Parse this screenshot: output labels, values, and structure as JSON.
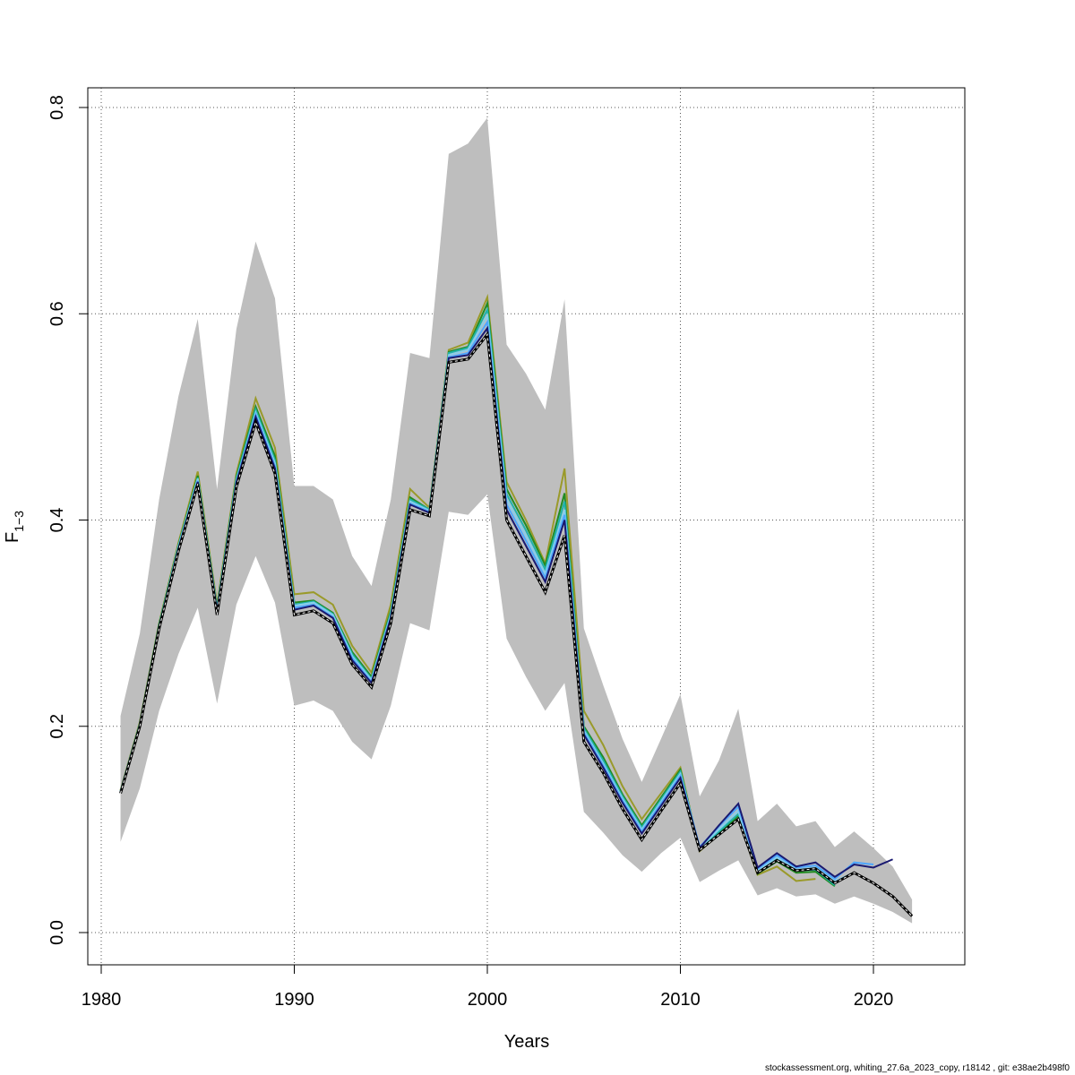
{
  "chart_data": {
    "type": "line",
    "xlabel": "Years",
    "ylabel_main": "F",
    "ylabel_sub": "1−3",
    "xlim": [
      1980,
      2024
    ],
    "ylim": [
      0,
      0.8
    ],
    "x_ticks": [
      1980,
      1990,
      2000,
      2010,
      2020
    ],
    "y_ticks": [
      0.0,
      0.2,
      0.4,
      0.6,
      0.8
    ],
    "y_tick_labels": [
      "0.0",
      "0.2",
      "0.4",
      "0.6",
      "0.8"
    ],
    "grid": true,
    "colors": {
      "band": "#bebebe",
      "main": "#000000",
      "series": [
        "#191970",
        "#4da6ff",
        "#87ceeb",
        "#20b2aa",
        "#228b22",
        "#9a9a2a"
      ]
    },
    "years": [
      1981,
      1982,
      1983,
      1984,
      1985,
      1986,
      1987,
      1988,
      1989,
      1990,
      1991,
      1992,
      1993,
      1994,
      1995,
      1996,
      1997,
      1998,
      1999,
      2000,
      2001,
      2002,
      2003,
      2004,
      2005,
      2006,
      2007,
      2008,
      2009,
      2010,
      2011,
      2012,
      2013,
      2014,
      2015,
      2016,
      2017,
      2018,
      2019,
      2020,
      2021,
      2022
    ],
    "estimate": [
      0.135,
      0.2,
      0.295,
      0.37,
      0.435,
      0.308,
      0.432,
      0.495,
      0.445,
      0.308,
      0.312,
      0.3,
      0.26,
      0.238,
      0.3,
      0.41,
      0.404,
      0.553,
      0.556,
      0.58,
      0.4,
      0.365,
      0.33,
      0.385,
      0.185,
      0.155,
      0.12,
      0.09,
      0.118,
      0.145,
      0.08,
      0.095,
      0.11,
      0.058,
      0.07,
      0.06,
      0.062,
      0.048,
      0.058,
      0.048,
      0.035,
      0.016
    ],
    "lower": [
      0.088,
      0.14,
      0.215,
      0.27,
      0.315,
      0.222,
      0.318,
      0.365,
      0.32,
      0.22,
      0.225,
      0.215,
      0.185,
      0.168,
      0.22,
      0.3,
      0.293,
      0.408,
      0.405,
      0.425,
      0.285,
      0.248,
      0.215,
      0.242,
      0.117,
      0.097,
      0.075,
      0.059,
      0.077,
      0.092,
      0.049,
      0.06,
      0.07,
      0.036,
      0.043,
      0.035,
      0.037,
      0.028,
      0.035,
      0.028,
      0.02,
      0.009
    ],
    "upper": [
      0.21,
      0.29,
      0.42,
      0.52,
      0.595,
      0.43,
      0.585,
      0.67,
      0.615,
      0.433,
      0.433,
      0.42,
      0.365,
      0.336,
      0.42,
      0.562,
      0.557,
      0.755,
      0.765,
      0.79,
      0.57,
      0.542,
      0.507,
      0.614,
      0.295,
      0.24,
      0.188,
      0.146,
      0.188,
      0.231,
      0.132,
      0.167,
      0.217,
      0.108,
      0.125,
      0.103,
      0.108,
      0.083,
      0.098,
      0.082,
      0.064,
      0.032
    ],
    "series": [
      {
        "years_end": 2021,
        "values": [
          0.136,
          0.201,
          0.296,
          0.372,
          0.437,
          0.311,
          0.436,
          0.5,
          0.45,
          0.313,
          0.317,
          0.305,
          0.264,
          0.242,
          0.305,
          0.415,
          0.407,
          0.557,
          0.56,
          0.586,
          0.41,
          0.375,
          0.34,
          0.4,
          0.192,
          0.16,
          0.126,
          0.096,
          0.123,
          0.15,
          0.082,
          0.104,
          0.125,
          0.063,
          0.077,
          0.064,
          0.068,
          0.054,
          0.066,
          0.063,
          0.071
        ]
      },
      {
        "years_end": 2020,
        "values": [
          0.136,
          0.201,
          0.296,
          0.373,
          0.438,
          0.312,
          0.437,
          0.502,
          0.452,
          0.315,
          0.318,
          0.306,
          0.266,
          0.243,
          0.306,
          0.416,
          0.408,
          0.558,
          0.562,
          0.592,
          0.415,
          0.38,
          0.344,
          0.405,
          0.194,
          0.162,
          0.128,
          0.098,
          0.125,
          0.152,
          0.083,
          0.103,
          0.122,
          0.062,
          0.075,
          0.063,
          0.065,
          0.052,
          0.068,
          0.066
        ]
      },
      {
        "years_end": 2019,
        "values": [
          0.137,
          0.202,
          0.297,
          0.374,
          0.44,
          0.313,
          0.438,
          0.504,
          0.455,
          0.317,
          0.32,
          0.308,
          0.268,
          0.245,
          0.308,
          0.418,
          0.409,
          0.56,
          0.565,
          0.598,
          0.42,
          0.385,
          0.348,
          0.41,
          0.196,
          0.164,
          0.13,
          0.1,
          0.127,
          0.154,
          0.082,
          0.1,
          0.118,
          0.06,
          0.073,
          0.061,
          0.063,
          0.05,
          0.058
        ]
      },
      {
        "years_end": 2018,
        "values": [
          0.137,
          0.202,
          0.298,
          0.375,
          0.441,
          0.314,
          0.44,
          0.507,
          0.458,
          0.318,
          0.321,
          0.309,
          0.27,
          0.246,
          0.31,
          0.42,
          0.41,
          0.562,
          0.567,
          0.604,
          0.425,
          0.39,
          0.352,
          0.418,
          0.198,
          0.167,
          0.132,
          0.102,
          0.129,
          0.156,
          0.081,
          0.098,
          0.115,
          0.059,
          0.071,
          0.06,
          0.061,
          0.046
        ]
      },
      {
        "years_end": 2018,
        "values": [
          0.137,
          0.203,
          0.299,
          0.376,
          0.443,
          0.315,
          0.442,
          0.51,
          0.462,
          0.32,
          0.322,
          0.31,
          0.272,
          0.248,
          0.312,
          0.422,
          0.41,
          0.563,
          0.568,
          0.61,
          0.43,
          0.395,
          0.356,
          0.426,
          0.2,
          0.17,
          0.134,
          0.104,
          0.131,
          0.158,
          0.08,
          0.097,
          0.113,
          0.057,
          0.069,
          0.058,
          0.059,
          0.045
        ]
      },
      {
        "years_end": 2017,
        "values": [
          0.138,
          0.204,
          0.3,
          0.378,
          0.447,
          0.318,
          0.445,
          0.518,
          0.47,
          0.328,
          0.33,
          0.318,
          0.278,
          0.252,
          0.318,
          0.43,
          0.412,
          0.565,
          0.572,
          0.616,
          0.437,
          0.4,
          0.358,
          0.45,
          0.215,
          0.182,
          0.142,
          0.11,
          0.135,
          0.16,
          0.079,
          0.095,
          0.11,
          0.056,
          0.064,
          0.05,
          0.052
        ]
      }
    ]
  },
  "footer": "stockassessment.org, whiting_27.6a_2023_copy, r18142 , git: e38ae2b498f0"
}
